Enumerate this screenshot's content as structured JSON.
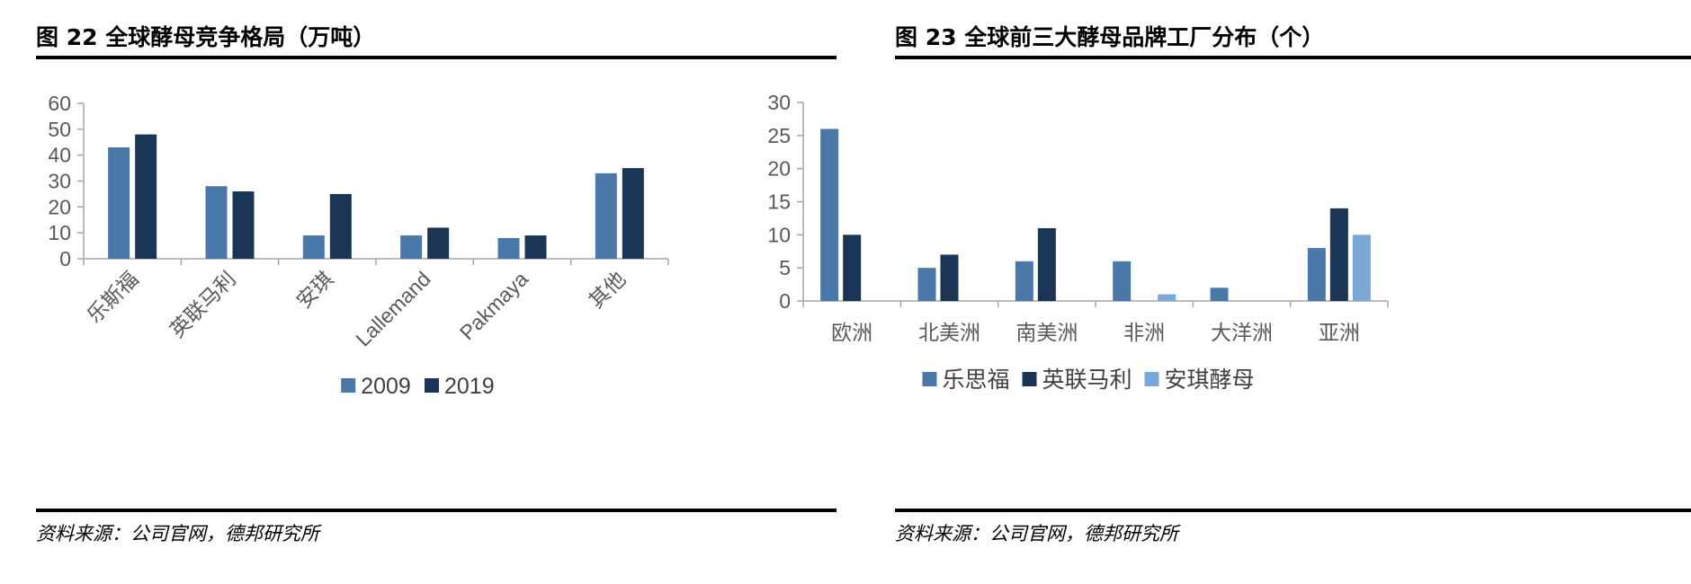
{
  "left_panel": {
    "title": "图 22 全球酵母竞争格局（万吨）",
    "source": "资料来源：公司官网，德邦研究所"
  },
  "right_panel": {
    "title": "图 23 全球前三大酵母品牌工厂分布（个）",
    "source": "资料来源：公司官网，德邦研究所"
  },
  "chart_data": [
    {
      "type": "bar",
      "title": "图 22 全球酵母竞争格局（万吨）",
      "categories": [
        "乐斯福",
        "英联马利",
        "安琪",
        "Lallemand",
        "Pakmaya",
        "其他"
      ],
      "series": [
        {
          "name": "2009",
          "values": [
            43,
            28,
            9,
            9,
            8,
            33
          ],
          "color": "#4A78A8"
        },
        {
          "name": "2019",
          "values": [
            48,
            26,
            25,
            12,
            9,
            35
          ],
          "color": "#1B3556"
        }
      ],
      "yticks": [
        0,
        10,
        20,
        30,
        40,
        50,
        60
      ],
      "ylim": [
        0,
        60
      ],
      "legend_position": "bottom",
      "grid": false
    },
    {
      "type": "bar",
      "title": "图 23 全球前三大酵母品牌工厂分布（个）",
      "categories": [
        "欧洲",
        "北美洲",
        "南美洲",
        "非洲",
        "大洋洲",
        "亚洲"
      ],
      "series": [
        {
          "name": "乐思福",
          "values": [
            26,
            5,
            6,
            6,
            2,
            8
          ],
          "color": "#4A78A8"
        },
        {
          "name": "英联马利",
          "values": [
            10,
            7,
            11,
            0,
            0,
            14
          ],
          "color": "#1B3556"
        },
        {
          "name": "安琪酵母",
          "values": [
            0,
            0,
            0,
            1,
            0,
            10
          ],
          "color": "#7BA7D7"
        }
      ],
      "yticks": [
        0,
        5,
        10,
        15,
        20,
        25,
        30
      ],
      "ylim": [
        0,
        30
      ],
      "legend_position": "bottom",
      "grid": false
    }
  ]
}
